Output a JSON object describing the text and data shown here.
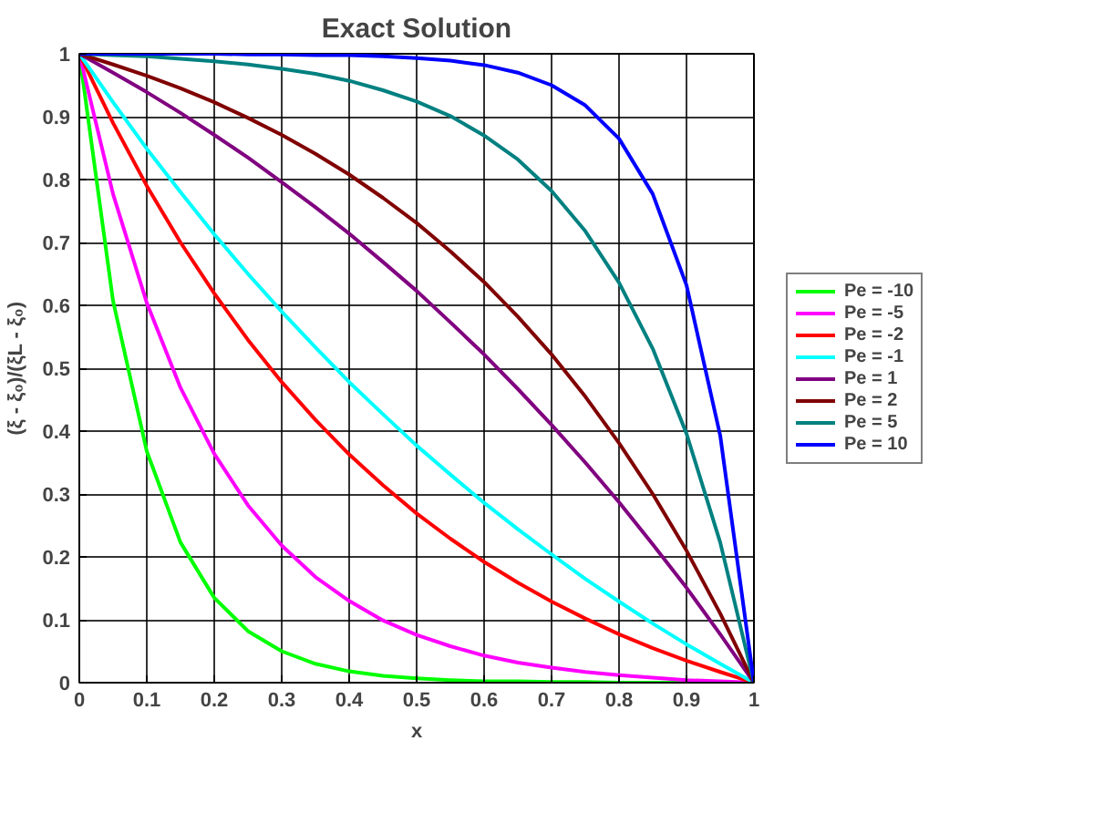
{
  "chart_data": {
    "type": "line",
    "title": "Exact Solution",
    "xlabel": "x",
    "ylabel": "(ξ - ξ₀)/(ξL - ξ₀)",
    "x": [
      0,
      0.05,
      0.1,
      0.15,
      0.2,
      0.25,
      0.3,
      0.35,
      0.4,
      0.45,
      0.5,
      0.55,
      0.6,
      0.65,
      0.7,
      0.75,
      0.8,
      0.85,
      0.9,
      0.95,
      1
    ],
    "xlim": [
      0,
      1
    ],
    "ylim": [
      0,
      1
    ],
    "xticks": [
      0,
      0.1,
      0.2,
      0.3,
      0.4,
      0.5,
      0.6,
      0.7,
      0.8,
      0.9,
      1
    ],
    "yticks": [
      0,
      0.1,
      0.2,
      0.3,
      0.4,
      0.5,
      0.6,
      0.7,
      0.8,
      0.9,
      1
    ],
    "grid": true,
    "legend": "right",
    "marker": "none",
    "line_style": "solid",
    "series": [
      {
        "name": "Pe = -10",
        "color": "#00ff00",
        "values": [
          1,
          0.607,
          0.368,
          0.223,
          0.135,
          0.082,
          0.05,
          0.03,
          0.018,
          0.011,
          0.007,
          0.004,
          0.002,
          0.002,
          0.001,
          0.001,
          0,
          0,
          0,
          0,
          0
        ]
      },
      {
        "name": "Pe = -5",
        "color": "#ff00ff",
        "values": [
          1,
          0.777,
          0.604,
          0.469,
          0.364,
          0.282,
          0.218,
          0.168,
          0.13,
          0.099,
          0.076,
          0.058,
          0.043,
          0.032,
          0.024,
          0.017,
          0.012,
          0.008,
          0.004,
          0.002,
          0
        ]
      },
      {
        "name": "Pe = -2",
        "color": "#ff0000",
        "values": [
          1,
          0.89,
          0.79,
          0.7,
          0.619,
          0.545,
          0.478,
          0.418,
          0.363,
          0.314,
          0.269,
          0.229,
          0.192,
          0.159,
          0.129,
          0.102,
          0.077,
          0.055,
          0.035,
          0.017,
          0
        ]
      },
      {
        "name": "Pe = -1",
        "color": "#00ffff",
        "values": [
          1,
          0.923,
          0.849,
          0.78,
          0.713,
          0.65,
          0.59,
          0.533,
          0.478,
          0.427,
          0.377,
          0.331,
          0.286,
          0.244,
          0.204,
          0.165,
          0.129,
          0.094,
          0.061,
          0.03,
          0
        ]
      },
      {
        "name": "Pe = 1",
        "color": "#800080",
        "values": [
          1,
          0.97,
          0.939,
          0.906,
          0.871,
          0.835,
          0.796,
          0.756,
          0.714,
          0.669,
          0.623,
          0.573,
          0.522,
          0.467,
          0.41,
          0.35,
          0.287,
          0.22,
          0.151,
          0.077,
          0
        ]
      },
      {
        "name": "Pe = 2",
        "color": "#800000",
        "values": [
          1,
          0.983,
          0.965,
          0.945,
          0.923,
          0.898,
          0.871,
          0.841,
          0.808,
          0.771,
          0.731,
          0.686,
          0.637,
          0.582,
          0.522,
          0.455,
          0.381,
          0.3,
          0.21,
          0.11,
          0
        ]
      },
      {
        "name": "Pe = 5",
        "color": "#008080",
        "values": [
          1,
          0.998,
          0.996,
          0.992,
          0.988,
          0.983,
          0.976,
          0.968,
          0.957,
          0.942,
          0.924,
          0.901,
          0.87,
          0.832,
          0.782,
          0.718,
          0.636,
          0.531,
          0.396,
          0.223,
          0
        ]
      },
      {
        "name": "Pe = 10",
        "color": "#0000ff",
        "values": [
          1,
          1,
          1,
          1,
          1,
          0.999,
          0.999,
          0.998,
          0.998,
          0.996,
          0.993,
          0.989,
          0.982,
          0.97,
          0.95,
          0.918,
          0.865,
          0.777,
          0.632,
          0.393,
          0
        ]
      }
    ]
  }
}
